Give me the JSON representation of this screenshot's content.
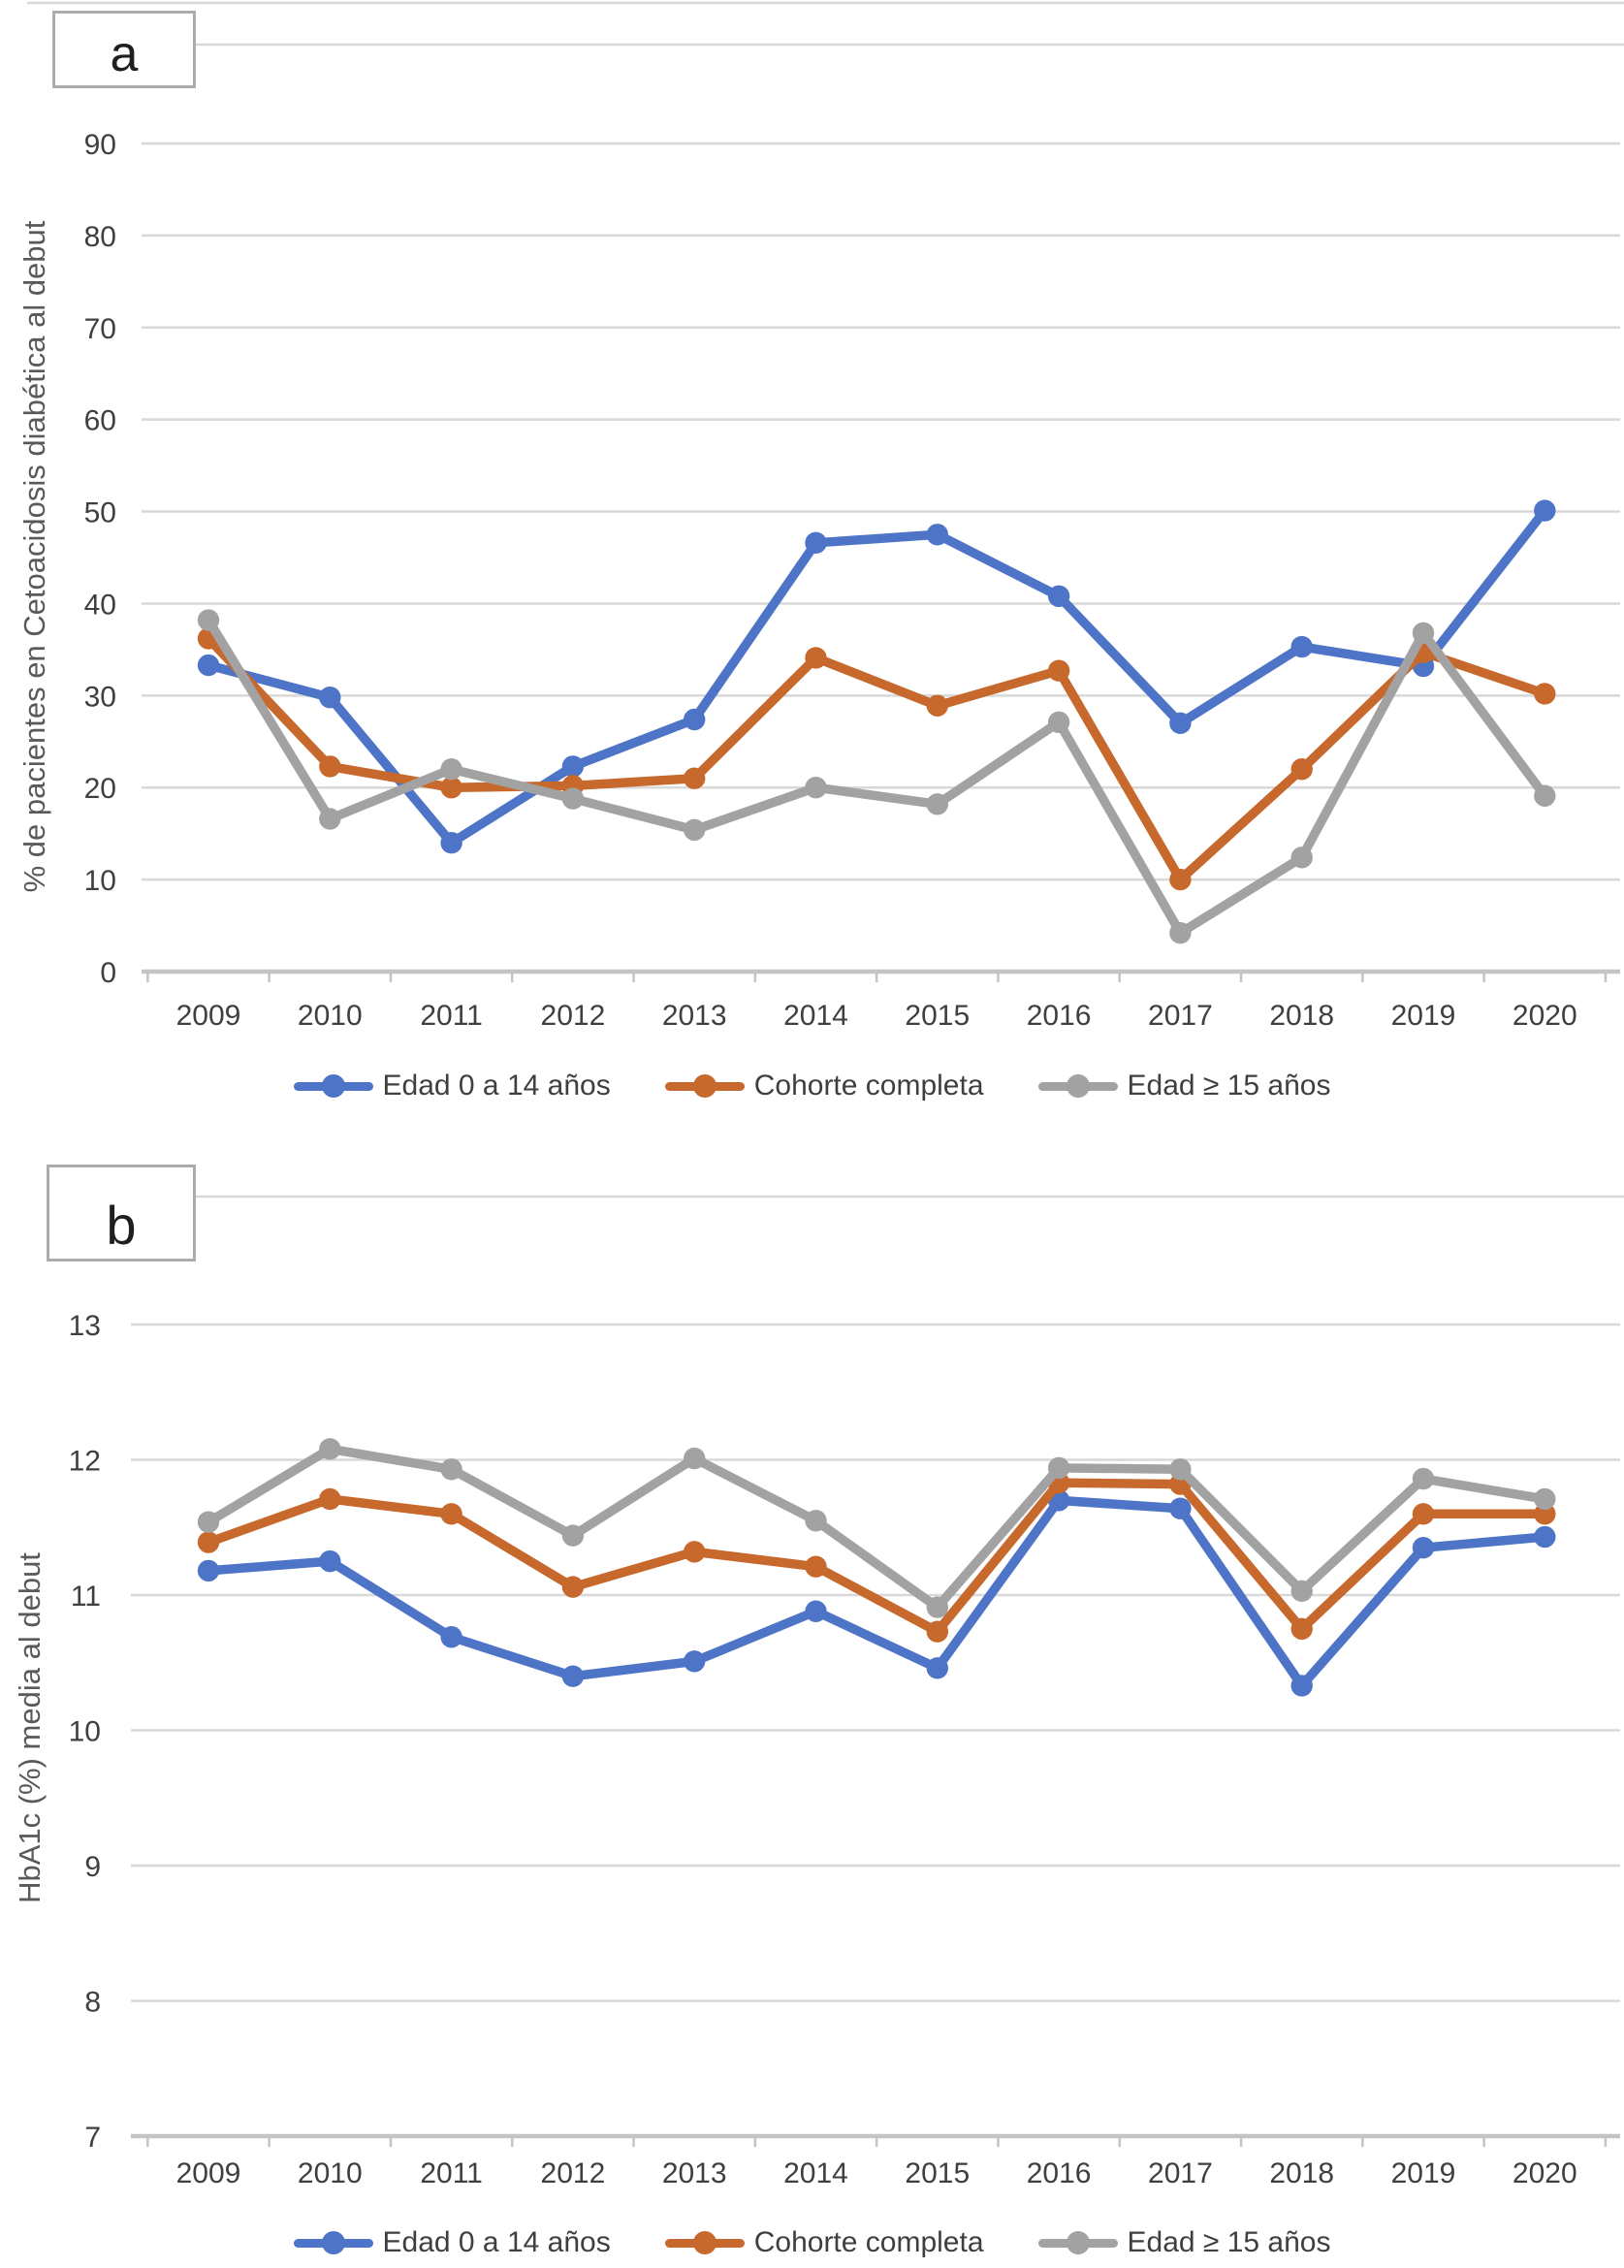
{
  "chart_data": [
    {
      "type": "line",
      "panel_label": "a",
      "title": "a",
      "xlabel": "",
      "ylabel": "% de pacientes en Cetoacidosis diabética al debut",
      "categories": [
        "2009",
        "2010",
        "2011",
        "2012",
        "2013",
        "2014",
        "2015",
        "2016",
        "2017",
        "2018",
        "2019",
        "2020"
      ],
      "series": [
        {
          "name": "Edad 0 a 14 años",
          "color": "#4D74C6",
          "values": [
            33.3,
            29.8,
            14.0,
            22.3,
            27.4,
            46.6,
            47.5,
            40.8,
            27.0,
            35.3,
            33.2,
            50.1
          ]
        },
        {
          "name": "Cohorte completa",
          "color": "#C7682C",
          "values": [
            36.2,
            22.3,
            20.0,
            20.2,
            21.0,
            34.1,
            28.9,
            32.7,
            10.0,
            22.0,
            34.7,
            30.2
          ]
        },
        {
          "name": "Edad ≥ 15 años",
          "color": "#A2A2A2",
          "values": [
            38.2,
            16.6,
            22.0,
            18.8,
            15.4,
            20.0,
            18.2,
            27.1,
            4.2,
            12.4,
            36.8,
            19.1
          ]
        }
      ],
      "ylim": [
        0,
        105
      ],
      "yticks": [
        0,
        10,
        20,
        30,
        40,
        50,
        60,
        70,
        80,
        90
      ],
      "grid": true,
      "legend_position": "bottom",
      "marker": "circle"
    },
    {
      "type": "line",
      "panel_label": "b",
      "title": "b",
      "xlabel": "",
      "ylabel": "HbA1c (%) media al debut",
      "categories": [
        "2009",
        "2010",
        "2011",
        "2012",
        "2013",
        "2014",
        "2015",
        "2016",
        "2017",
        "2018",
        "2019",
        "2020"
      ],
      "series": [
        {
          "name": "Edad 0 a 14 años",
          "color": "#4D74C6",
          "values": [
            11.18,
            11.25,
            10.69,
            10.4,
            10.51,
            10.88,
            10.46,
            11.7,
            11.64,
            10.33,
            11.35,
            11.43
          ]
        },
        {
          "name": "Cohorte completa",
          "color": "#C7682C",
          "values": [
            11.39,
            11.71,
            11.6,
            11.06,
            11.32,
            11.21,
            10.73,
            11.83,
            11.82,
            10.75,
            11.6,
            11.6
          ]
        },
        {
          "name": "Edad ≥ 15 años",
          "color": "#A2A2A2",
          "values": [
            11.54,
            12.08,
            11.93,
            11.44,
            12.01,
            11.55,
            10.91,
            11.94,
            11.93,
            11.03,
            11.86,
            11.71
          ]
        }
      ],
      "ylim": [
        7,
        14
      ],
      "yticks": [
        7,
        8,
        9,
        10,
        11,
        12,
        13
      ],
      "grid": true,
      "legend_position": "bottom",
      "marker": "circle"
    }
  ],
  "style": {
    "gridline_color": "#D8D8D8",
    "axis_color": "#C4C4C4",
    "tick_text_color": "#3F3F3F",
    "axis_title_color": "#595959",
    "panel_letter_color": "#1F1F1F",
    "panel_box_border_color": "#ABABAB",
    "background": "#FFFFFF"
  }
}
